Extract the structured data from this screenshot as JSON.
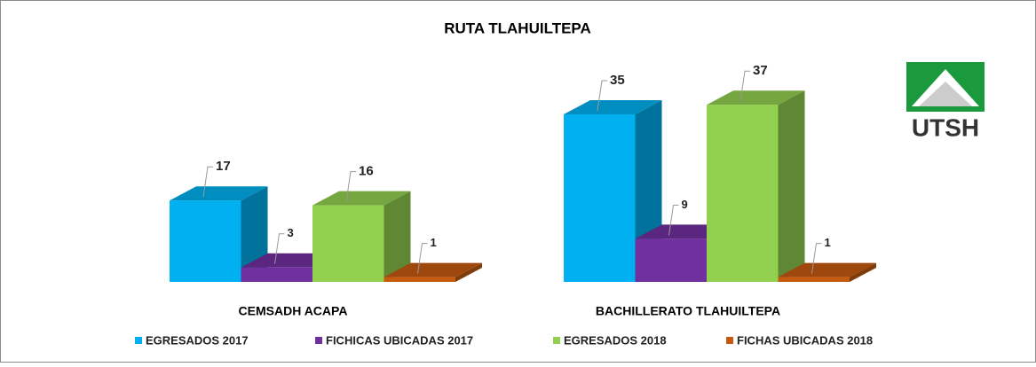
{
  "chart_data": {
    "type": "bar3d",
    "title": "RUTA TLAHUILTEPA",
    "categories": [
      "CEMSADH ACAPA",
      "BACHILLERATO TLAHUILTEPA"
    ],
    "series": [
      {
        "name": "EGRESADOS 2017",
        "color": "#00b0f0",
        "values": [
          17,
          35
        ]
      },
      {
        "name": "FICHICAS UBICADAS 2017",
        "color": "#7030a0",
        "values": [
          3,
          9
        ]
      },
      {
        "name": "EGRESADOS 2018",
        "color": "#92d050",
        "values": [
          16,
          37
        ]
      },
      {
        "name": "FICHAS UBICADAS 2018",
        "color": "#c55a11",
        "values": [
          1,
          1
        ]
      }
    ],
    "legend": "bottom"
  },
  "logo": {
    "text": "UTSH"
  }
}
